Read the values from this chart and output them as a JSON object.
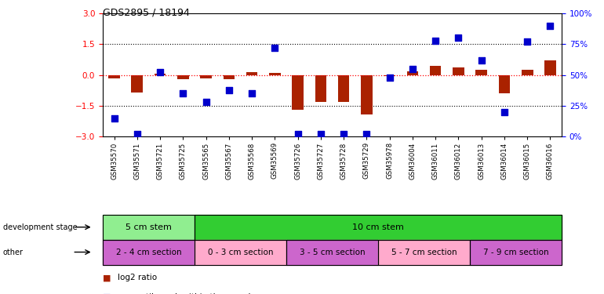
{
  "title": "GDS2895 / 18194",
  "samples": [
    "GSM35570",
    "GSM35571",
    "GSM35721",
    "GSM35725",
    "GSM35565",
    "GSM35567",
    "GSM35568",
    "GSM35569",
    "GSM35726",
    "GSM35727",
    "GSM35728",
    "GSM35729",
    "GSM35978",
    "GSM36004",
    "GSM36011",
    "GSM36012",
    "GSM36013",
    "GSM36014",
    "GSM36015",
    "GSM36016"
  ],
  "log2_ratio": [
    -0.15,
    -0.85,
    0.07,
    -0.2,
    -0.18,
    -0.2,
    0.15,
    0.1,
    -1.7,
    -1.3,
    -1.3,
    -1.9,
    -0.05,
    0.18,
    0.45,
    0.35,
    0.25,
    -0.9,
    0.25,
    0.7
  ],
  "percentile": [
    15,
    2,
    52,
    35,
    28,
    38,
    35,
    72,
    2,
    2,
    2,
    2,
    48,
    55,
    78,
    80,
    62,
    20,
    77,
    90
  ],
  "dev_stage_groups": [
    {
      "label": "5 cm stem",
      "start": 0,
      "end": 4,
      "color": "#90EE90"
    },
    {
      "label": "10 cm stem",
      "start": 4,
      "end": 20,
      "color": "#32CD32"
    }
  ],
  "other_groups": [
    {
      "label": "2 - 4 cm section",
      "start": 0,
      "end": 4,
      "color": "#CC66CC"
    },
    {
      "label": "0 - 3 cm section",
      "start": 4,
      "end": 8,
      "color": "#FFAACC"
    },
    {
      "label": "3 - 5 cm section",
      "start": 8,
      "end": 12,
      "color": "#CC66CC"
    },
    {
      "label": "5 - 7 cm section",
      "start": 12,
      "end": 16,
      "color": "#FFAACC"
    },
    {
      "label": "7 - 9 cm section",
      "start": 16,
      "end": 20,
      "color": "#CC66CC"
    }
  ],
  "ylim": [
    -3,
    3
  ],
  "y2lim": [
    0,
    100
  ],
  "bar_color": "#AA2200",
  "dot_color": "#0000CC",
  "bar_width": 0.5,
  "dot_size": 28,
  "yticks_left": [
    -3,
    -1.5,
    0,
    1.5,
    3
  ],
  "yticks_right": [
    0,
    25,
    50,
    75,
    100
  ],
  "ytick_labels_right": [
    "0%",
    "25%",
    "50%",
    "75%",
    "100%"
  ]
}
